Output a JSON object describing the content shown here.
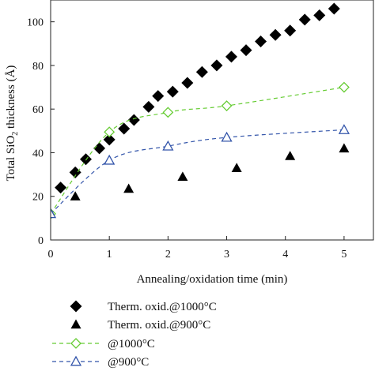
{
  "chart_data": {
    "type": "scatter",
    "xlabel": "Annealing/oxidation time (min)",
    "ylabel": "Total SiO",
    "ylabel_sub": "2",
    "ylabel_suffix": " thickness (Å)",
    "xlim": [
      0,
      5.5
    ],
    "ylim": [
      0,
      110
    ],
    "xticks": [
      0,
      1,
      2,
      3,
      4,
      5
    ],
    "yticks": [
      0,
      20,
      40,
      60,
      80,
      100
    ],
    "grid": false,
    "legend_position": "bottom",
    "series": [
      {
        "name": "Therm. oxid.@1000°C",
        "marker": "filled-diamond",
        "line": "none",
        "color": "#000000",
        "x": [
          0.17,
          0.42,
          0.6,
          0.83,
          1.0,
          1.25,
          1.42,
          1.67,
          1.83,
          2.08,
          2.33,
          2.58,
          2.83,
          3.08,
          3.33,
          3.58,
          3.83,
          4.08,
          4.33,
          4.58,
          4.83
        ],
        "y": [
          24,
          31,
          37,
          42,
          46,
          51,
          55,
          61,
          66,
          68,
          72,
          77,
          80,
          84,
          87,
          91,
          94,
          96,
          101,
          103,
          106
        ]
      },
      {
        "name": "Therm. oxid.@900°C",
        "marker": "filled-triangle",
        "line": "none",
        "color": "#000000",
        "x": [
          0.42,
          1.33,
          2.25,
          3.17,
          4.08,
          5.0
        ],
        "y": [
          20,
          23.5,
          29,
          33,
          38.5,
          42
        ]
      },
      {
        "name": "@1000°C",
        "marker": "open-diamond",
        "line": "dashed",
        "color": "#66cc33",
        "x": [
          0,
          1,
          2,
          3,
          5
        ],
        "y": [
          12,
          49.5,
          58.5,
          61.5,
          70
        ]
      },
      {
        "name": "@900°C",
        "marker": "open-triangle",
        "line": "dashed",
        "color": "#3355aa",
        "x": [
          0,
          1,
          2,
          3,
          5
        ],
        "y": [
          12,
          36.5,
          43,
          47,
          50.5
        ]
      }
    ]
  }
}
